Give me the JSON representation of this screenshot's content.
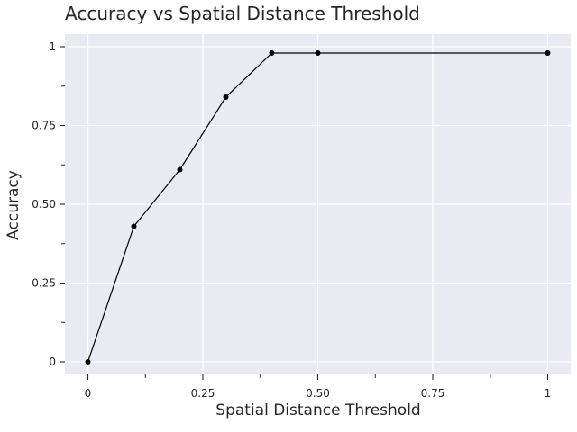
{
  "chart_data": {
    "type": "line",
    "title": "Accuracy vs Spatial Distance Threshold",
    "xlabel": "Spatial Distance Threshold",
    "ylabel": "Accuracy",
    "x": [
      0,
      0.1,
      0.2,
      0.3,
      0.4,
      0.5,
      1.0
    ],
    "y": [
      0,
      0.43,
      0.61,
      0.84,
      0.98,
      0.98,
      0.98
    ],
    "xlim": [
      -0.05,
      1.05
    ],
    "ylim": [
      -0.04,
      1.04
    ],
    "xticks": [
      {
        "value": 0,
        "label": "0"
      },
      {
        "value": 0.125,
        "label": ""
      },
      {
        "value": 0.25,
        "label": "0.25"
      },
      {
        "value": 0.375,
        "label": ""
      },
      {
        "value": 0.5,
        "label": "0.50"
      },
      {
        "value": 0.625,
        "label": ""
      },
      {
        "value": 0.75,
        "label": "0.75"
      },
      {
        "value": 0.875,
        "label": ""
      },
      {
        "value": 1.0,
        "label": "1"
      }
    ],
    "yticks": [
      {
        "value": 0,
        "label": "0"
      },
      {
        "value": 0.125,
        "label": ""
      },
      {
        "value": 0.25,
        "label": "0.25"
      },
      {
        "value": 0.375,
        "label": ""
      },
      {
        "value": 0.5,
        "label": "0.50"
      },
      {
        "value": 0.625,
        "label": ""
      },
      {
        "value": 0.75,
        "label": "0.75"
      },
      {
        "value": 0.875,
        "label": ""
      },
      {
        "value": 1.0,
        "label": "1"
      }
    ],
    "grid": true,
    "colors": {
      "background": "#eaeaf2",
      "grid": "#ffffff",
      "line": "#000000",
      "marker": "#000000"
    }
  }
}
